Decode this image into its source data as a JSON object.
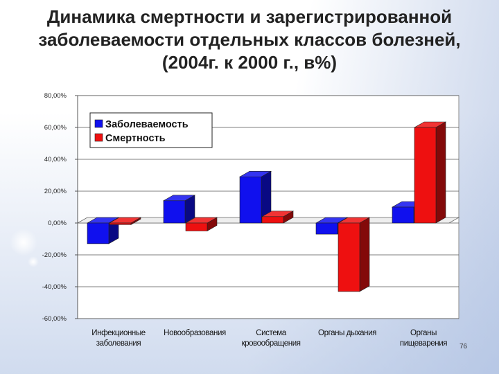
{
  "title": "Динамика смертности и зарегистрированной заболеваемости отдельных классов болезней, (2004г. к 2000 г., в%)",
  "page_number": "76",
  "colors": {
    "series_morbidity": "#1010ee",
    "series_mortality": "#ee1010",
    "plot_bg": "#ffffff",
    "axis": "#555555"
  },
  "chart_data": {
    "type": "bar",
    "title": "",
    "xlabel": "",
    "ylabel": "",
    "categories": [
      [
        "Инфекционные",
        "заболевания"
      ],
      [
        "Новообразования"
      ],
      [
        "Система",
        "кровообращения"
      ],
      [
        "Органы дыхания"
      ],
      [
        "Органы",
        "пищеварения"
      ]
    ],
    "series": [
      {
        "name": "Заболеваемость",
        "values": [
          -13,
          14,
          29,
          -7,
          10
        ]
      },
      {
        "name": "Смертность",
        "values": [
          -1,
          -5,
          4,
          -43,
          60
        ]
      }
    ],
    "ylim": [
      -60,
      80
    ],
    "yticks": [
      "80,00%",
      "60,00%",
      "40,00%",
      "20,00%",
      "0,00%",
      "-20,00%",
      "-40,00%",
      "-60,00%"
    ],
    "grid": true,
    "legend_placement": "top-left"
  }
}
